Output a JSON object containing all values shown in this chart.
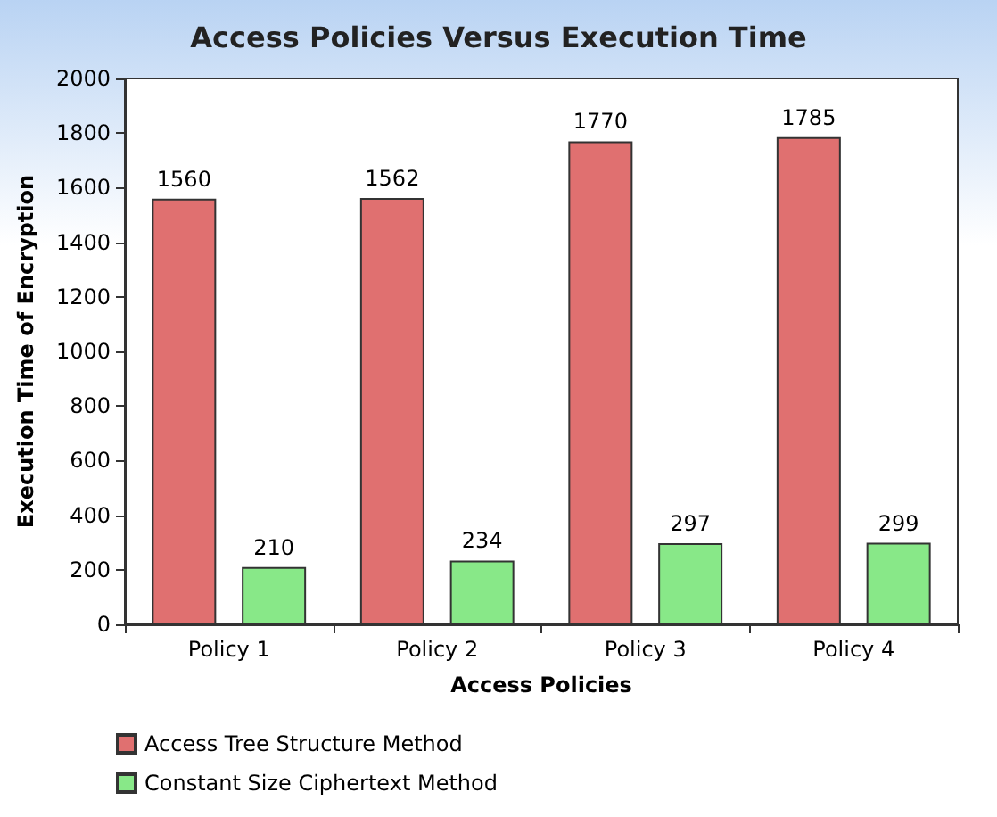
{
  "chart_data": {
    "type": "bar",
    "title": "Access Policies Versus Execution Time",
    "xlabel": "Access Policies",
    "ylabel": "Execution Time of Encryption",
    "categories": [
      "Policy 1",
      "Policy 2",
      "Policy 3",
      "Policy 4"
    ],
    "series": [
      {
        "name": "Access Tree Structure Method",
        "color": "#e07070",
        "values": [
          1560,
          1562,
          1770,
          1785
        ]
      },
      {
        "name": "Constant Size Ciphertext Method",
        "color": "#88e888",
        "values": [
          210,
          234,
          297,
          299
        ]
      }
    ],
    "ylim": [
      0,
      2000
    ],
    "yticks": [
      0,
      200,
      400,
      600,
      800,
      1000,
      1200,
      1400,
      1600,
      1800,
      2000
    ],
    "data_labels": true,
    "legend": "bottom",
    "grid": false
  }
}
